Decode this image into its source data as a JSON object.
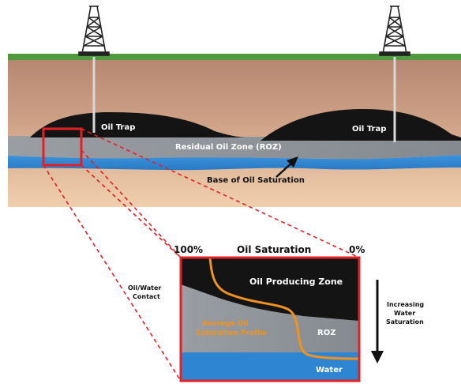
{
  "cross_section": {
    "trap_left_label": "Oil Trap",
    "trap_right_label": "Oil Trap",
    "roz_label": "Residual Oil Zone (ROZ)",
    "base_label": "Base of Oil Saturation"
  },
  "detail": {
    "pct_left": "100%",
    "pct_title": "Oil Saturation",
    "pct_right": "0%",
    "contact_line1": "Oil/Water",
    "contact_line2": "Contact",
    "producing_zone": "Oil Producing Zone",
    "avg_line1": "Average Oil",
    "avg_line2": "Saturation Profile",
    "roz": "ROZ",
    "water": "Water",
    "increasing_line1": "Increasing",
    "increasing_line2": "Water",
    "increasing_line3": "Saturation"
  },
  "colors": {
    "surface": "#4f9a3c",
    "rock_top": "#b98a72",
    "rock_bottom": "#ecc8a8",
    "oil": "#141414",
    "roz": "#8f9398",
    "water": "#2e86d3",
    "highlight": "#e32025",
    "profile": "#f0921e"
  }
}
